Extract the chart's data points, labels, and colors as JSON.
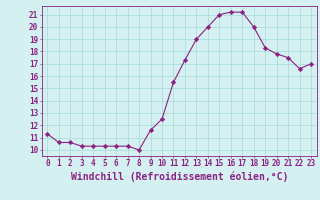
{
  "x": [
    0,
    1,
    2,
    3,
    4,
    5,
    6,
    7,
    8,
    9,
    10,
    11,
    12,
    13,
    14,
    15,
    16,
    17,
    18,
    19,
    20,
    21,
    22,
    23
  ],
  "y": [
    11.3,
    10.6,
    10.6,
    10.3,
    10.3,
    10.3,
    10.3,
    10.3,
    10.0,
    11.6,
    12.5,
    15.5,
    17.3,
    19.0,
    20.0,
    21.0,
    21.2,
    21.2,
    20.0,
    18.3,
    17.8,
    17.5,
    16.6,
    17.0
  ],
  "line_color": "#8B2284",
  "marker": "D",
  "marker_size": 2.2,
  "bg_color": "#d5f0f0",
  "grid_color": "#aadddd",
  "xlabel": "Windchill (Refroidissement éolien,°C)",
  "xlabel_color": "#8B2284",
  "xlim": [
    -0.5,
    23.5
  ],
  "ylim": [
    9.5,
    21.7
  ],
  "yticks": [
    10,
    11,
    12,
    13,
    14,
    15,
    16,
    17,
    18,
    19,
    20,
    21
  ],
  "xticks": [
    0,
    1,
    2,
    3,
    4,
    5,
    6,
    7,
    8,
    9,
    10,
    11,
    12,
    13,
    14,
    15,
    16,
    17,
    18,
    19,
    20,
    21,
    22,
    23
  ],
  "tick_color": "#8B2284",
  "tick_fontsize": 5.5,
  "xlabel_fontsize": 7,
  "spine_color": "#8B2284"
}
